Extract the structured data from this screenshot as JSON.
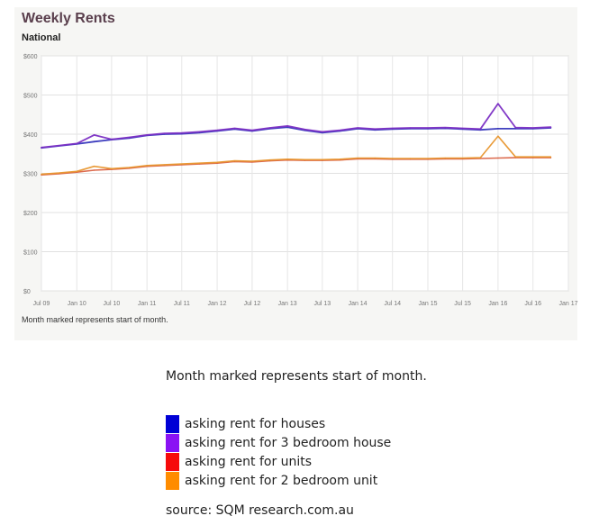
{
  "chart_data": {
    "type": "line",
    "title": "Weekly Rents",
    "subtitle": "National",
    "xlabel": "",
    "ylabel": "",
    "x_ticks": [
      "Jul 09",
      "Jan 10",
      "Jul 10",
      "Jan 11",
      "Jul 11",
      "Jan 12",
      "Jul 12",
      "Jan 13",
      "Jul 13",
      "Jan 14",
      "Jul 14",
      "Jan 15",
      "Jul 15",
      "Jan 16",
      "Jul 16",
      "Jan 17"
    ],
    "y_ticks": [
      "$0",
      "$100",
      "$200",
      "$300",
      "$400",
      "$500",
      "$600"
    ],
    "ylim": [
      0,
      600
    ],
    "grid": true,
    "series": [
      {
        "name": "asking rent for houses",
        "color": "#2b2bb8",
        "x": [
          "2009-07-01",
          "2009-10-01",
          "2010-01-01",
          "2010-04-01",
          "2010-07-01",
          "2010-10-01",
          "2011-01-01",
          "2011-04-01",
          "2011-07-01",
          "2011-10-01",
          "2012-01-01",
          "2012-04-01",
          "2012-07-01",
          "2012-10-01",
          "2013-01-01",
          "2013-04-01",
          "2013-07-01",
          "2013-10-01",
          "2014-01-01",
          "2014-04-01",
          "2014-07-01",
          "2014-10-01",
          "2015-01-01",
          "2015-04-01",
          "2015-07-01",
          "2015-10-01",
          "2016-01-01",
          "2016-04-01",
          "2016-07-01",
          "2016-10-01"
        ],
        "values": [
          365,
          370,
          375,
          381,
          386,
          390,
          397,
          400,
          401,
          404,
          408,
          413,
          408,
          414,
          418,
          410,
          404,
          408,
          414,
          411,
          413,
          414,
          414,
          415,
          413,
          411,
          414,
          414,
          414,
          416
        ]
      },
      {
        "name": "asking rent for 3 bedroom house",
        "color": "#7b2fc4",
        "x": [
          "2009-07-01",
          "2009-10-01",
          "2010-01-01",
          "2010-04-01",
          "2010-07-01",
          "2010-10-01",
          "2011-01-01",
          "2011-04-01",
          "2011-07-01",
          "2011-10-01",
          "2012-01-01",
          "2012-04-01",
          "2012-07-01",
          "2012-10-01",
          "2013-01-01",
          "2013-04-01",
          "2013-07-01",
          "2013-10-01",
          "2014-01-01",
          "2014-04-01",
          "2014-07-01",
          "2014-10-01",
          "2015-01-01",
          "2015-04-01",
          "2015-07-01",
          "2015-10-01",
          "2016-01-01",
          "2016-04-01",
          "2016-07-01",
          "2016-10-01"
        ],
        "values": [
          366,
          371,
          376,
          398,
          387,
          392,
          398,
          402,
          403,
          406,
          410,
          415,
          410,
          416,
          421,
          412,
          406,
          410,
          416,
          413,
          415,
          416,
          416,
          417,
          415,
          413,
          478,
          417,
          416,
          418
        ]
      },
      {
        "name": "asking rent for units",
        "color": "#d85a3a",
        "x": [
          "2009-07-01",
          "2009-10-01",
          "2010-01-01",
          "2010-04-01",
          "2010-07-01",
          "2010-10-01",
          "2011-01-01",
          "2011-04-01",
          "2011-07-01",
          "2011-10-01",
          "2012-01-01",
          "2012-04-01",
          "2012-07-01",
          "2012-10-01",
          "2013-01-01",
          "2013-04-01",
          "2013-07-01",
          "2013-10-01",
          "2014-01-01",
          "2014-04-01",
          "2014-07-01",
          "2014-10-01",
          "2015-01-01",
          "2015-04-01",
          "2015-07-01",
          "2015-10-01",
          "2016-01-01",
          "2016-04-01",
          "2016-07-01",
          "2016-10-01"
        ],
        "values": [
          296,
          299,
          303,
          308,
          310,
          313,
          318,
          320,
          322,
          324,
          326,
          330,
          329,
          332,
          334,
          333,
          333,
          334,
          337,
          337,
          336,
          336,
          336,
          337,
          337,
          338,
          339,
          340,
          340,
          340
        ]
      },
      {
        "name": "asking rent for 2 bedroom unit",
        "color": "#e8962e",
        "x": [
          "2009-07-01",
          "2009-10-01",
          "2010-01-01",
          "2010-04-01",
          "2010-07-01",
          "2010-10-01",
          "2011-01-01",
          "2011-04-01",
          "2011-07-01",
          "2011-10-01",
          "2012-01-01",
          "2012-04-01",
          "2012-07-01",
          "2012-10-01",
          "2013-01-01",
          "2013-04-01",
          "2013-07-01",
          "2013-10-01",
          "2014-01-01",
          "2014-04-01",
          "2014-07-01",
          "2014-10-01",
          "2015-01-01",
          "2015-04-01",
          "2015-07-01",
          "2015-10-01",
          "2016-01-01",
          "2016-04-01",
          "2016-07-01",
          "2016-10-01"
        ],
        "values": [
          298,
          301,
          305,
          318,
          312,
          315,
          320,
          322,
          324,
          326,
          328,
          332,
          331,
          334,
          336,
          335,
          335,
          336,
          339,
          339,
          338,
          338,
          338,
          339,
          339,
          340,
          395,
          342,
          342,
          342
        ]
      }
    ]
  },
  "notes": {
    "screenshot_note": "Month marked represents start of month.",
    "main_note": "Month marked represents start of month.",
    "source": "source: SQM research.com.au"
  }
}
